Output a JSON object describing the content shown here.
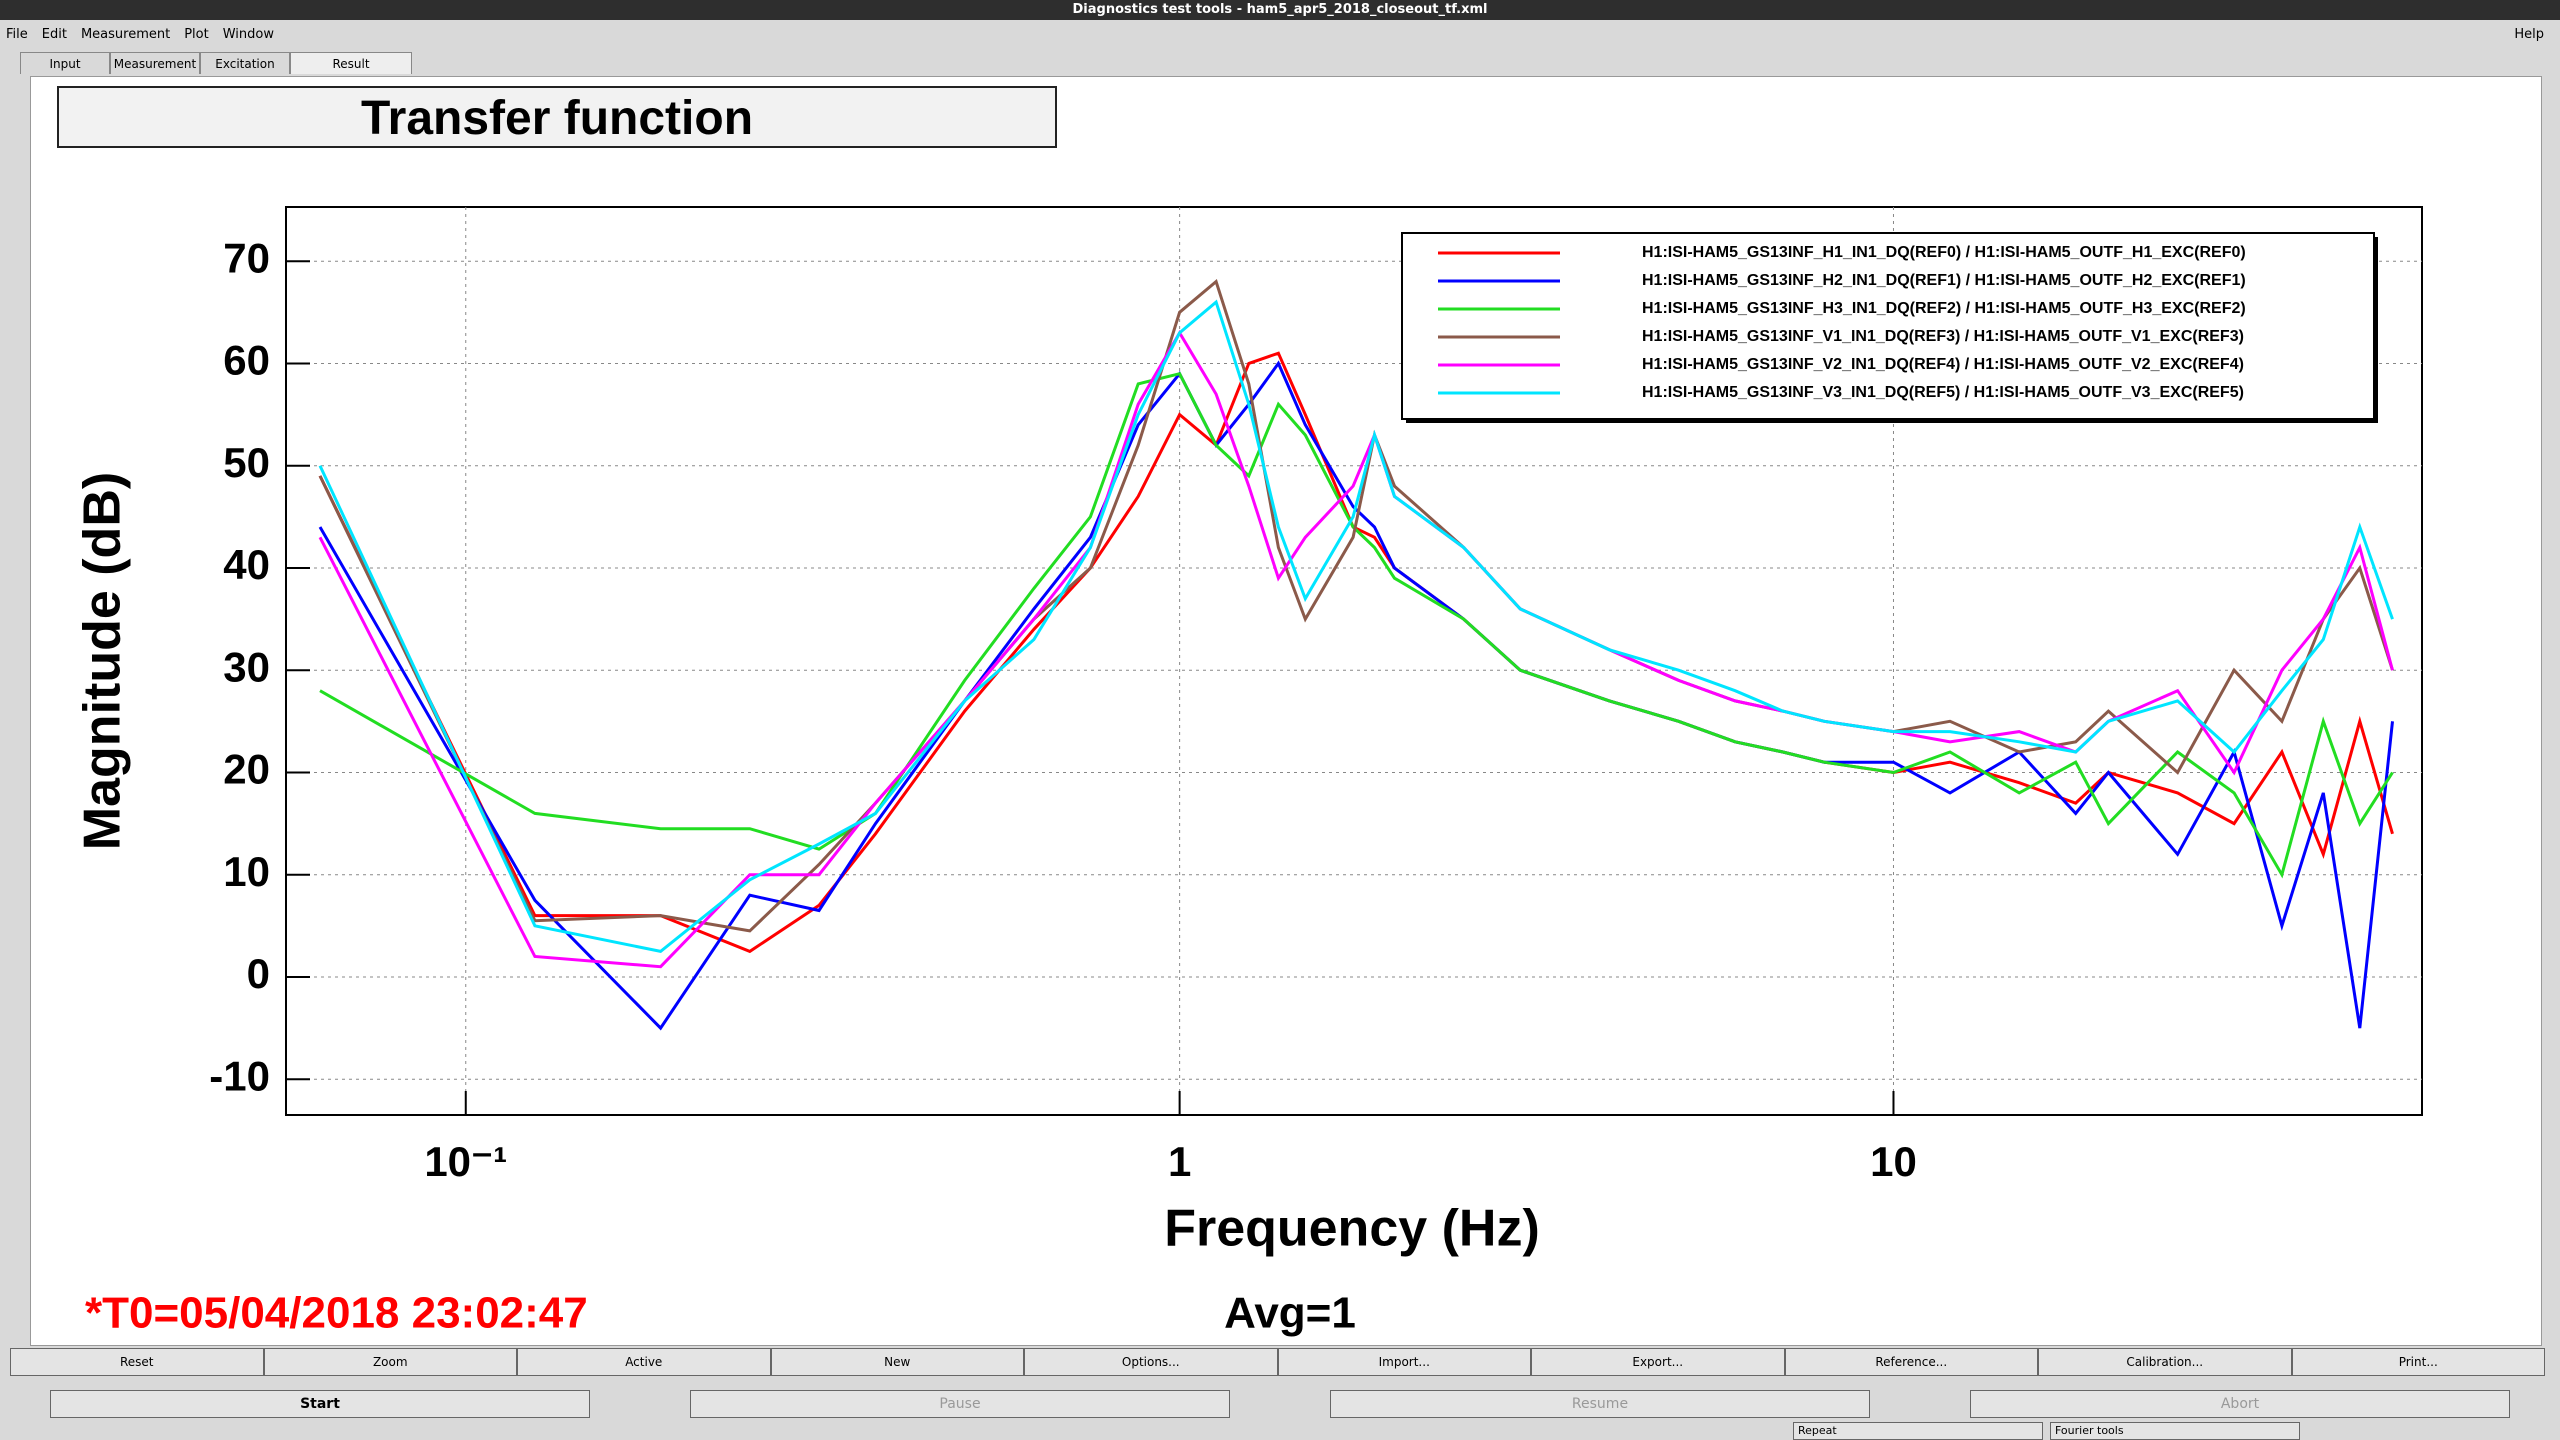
{
  "window": {
    "title": "Diagnostics test tools - ham5_apr5_2018_closeout_tf.xml",
    "menu": [
      "File",
      "Edit",
      "Measurement",
      "Plot",
      "Window"
    ],
    "help": "Help",
    "tabs": [
      "Input",
      "Measurement",
      "Excitation",
      "Result"
    ]
  },
  "panel": {
    "title": "Transfer function",
    "t0": "*T0=05/04/2018 23:02:47",
    "avg": "Avg=1"
  },
  "chart_data": {
    "type": "line",
    "x_label": "Frequency (Hz)",
    "y_label": "Magnitude (dB)",
    "log_x": true,
    "grid": true,
    "legend": "upper right",
    "xlim": [
      0.056,
      55
    ],
    "xticks": [
      {
        "value": 0.1,
        "label": "10⁻¹"
      },
      1,
      10
    ],
    "ylim": [
      -13.5,
      75.3
    ],
    "yticks": [
      -10,
      0,
      10,
      20,
      30,
      40,
      50,
      60,
      70
    ],
    "x": [
      0.0625,
      0.125,
      0.1875,
      0.25,
      0.3125,
      0.375,
      0.5,
      0.625,
      0.75,
      0.875,
      1,
      1.125,
      1.25,
      1.375,
      1.5,
      1.75,
      1.875,
      2,
      2.5,
      3,
      4,
      5,
      6,
      7,
      8,
      10,
      12,
      15,
      18,
      20,
      25,
      30,
      35,
      40,
      45,
      50
    ],
    "series": [
      {
        "name": "H1:ISI-HAM5_GS13INF_H1_IN1_DQ(REF0) / H1:ISI-HAM5_OUTF_H1_EXC(REF0)",
        "color": "#ff0000",
        "values": [
          49,
          6,
          6,
          2.5,
          7,
          14,
          26,
          34,
          40,
          47,
          55,
          52,
          60,
          61,
          55,
          44,
          43,
          40,
          35,
          30,
          27,
          25,
          23,
          22,
          21,
          20,
          21,
          19,
          17,
          20,
          18,
          15,
          22,
          12,
          25,
          14
        ]
      },
      {
        "name": "H1:ISI-HAM5_GS13INF_H2_IN1_DQ(REF1) / H1:ISI-HAM5_OUTF_H2_EXC(REF1)",
        "color": "#0000ff",
        "values": [
          44,
          7.5,
          -5,
          8,
          6.5,
          15,
          27,
          36,
          43,
          54,
          59,
          52,
          56,
          60,
          54,
          46,
          44,
          40,
          35,
          30,
          27,
          25,
          23,
          22,
          21,
          21,
          18,
          22,
          16,
          20,
          12,
          22,
          5,
          18,
          -5,
          25
        ]
      },
      {
        "name": "H1:ISI-HAM5_GS13INF_H3_IN1_DQ(REF2) / H1:ISI-HAM5_OUTF_H3_EXC(REF2)",
        "color": "#22dd22",
        "values": [
          28,
          16,
          14.5,
          14.5,
          12.5,
          16,
          29,
          38,
          45,
          58,
          59,
          52,
          49,
          56,
          53,
          44,
          42,
          39,
          35,
          30,
          27,
          25,
          23,
          22,
          21,
          20,
          22,
          18,
          21,
          15,
          22,
          18,
          10,
          25,
          15,
          20
        ]
      },
      {
        "name": "H1:ISI-HAM5_GS13INF_V1_IN1_DQ(REF3) / H1:ISI-HAM5_OUTF_V1_EXC(REF3)",
        "color": "#8b5a4a",
        "values": [
          49,
          5.5,
          6,
          4.5,
          11,
          17,
          27,
          35,
          40,
          52,
          65,
          68,
          58,
          42,
          35,
          43,
          53,
          48,
          42,
          36,
          32,
          29,
          27,
          26,
          25,
          24,
          25,
          22,
          23,
          26,
          20,
          30,
          25,
          35,
          40,
          30
        ]
      },
      {
        "name": "H1:ISI-HAM5_GS13INF_V2_IN1_DQ(REF4) / H1:ISI-HAM5_OUTF_V2_EXC(REF4)",
        "color": "#ff00ff",
        "values": [
          43,
          2,
          1,
          10,
          10,
          17,
          27,
          35,
          42,
          56,
          63,
          57,
          48,
          39,
          43,
          48,
          53,
          47,
          42,
          36,
          32,
          29,
          27,
          26,
          25,
          24,
          23,
          24,
          22,
          25,
          28,
          20,
          30,
          35,
          42,
          30
        ]
      },
      {
        "name": "H1:ISI-HAM5_GS13INF_V3_IN1_DQ(REF5) / H1:ISI-HAM5_OUTF_V3_EXC(REF5)",
        "color": "#00e5ff",
        "values": [
          50,
          5,
          2.5,
          9.5,
          13,
          16,
          27,
          33,
          42,
          55,
          63,
          66,
          56,
          44,
          37,
          45,
          53,
          47,
          42,
          36,
          32,
          30,
          28,
          26,
          25,
          24,
          24,
          23,
          22,
          25,
          27,
          22,
          28,
          33,
          44,
          35
        ]
      }
    ]
  },
  "buttons": [
    "Reset",
    "Zoom",
    "Active",
    "New",
    "Options...",
    "Import...",
    "Export...",
    "Reference...",
    "Calibration...",
    "Print..."
  ],
  "controls": [
    "Start",
    "Pause",
    "Resume",
    "Abort"
  ],
  "status": [
    "Repeat",
    "Fourier tools"
  ]
}
